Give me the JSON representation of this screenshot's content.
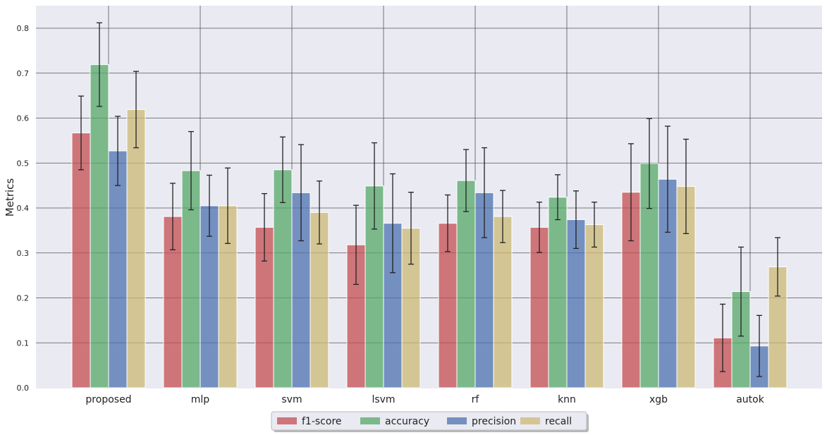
{
  "chart_data": {
    "type": "bar",
    "title": "",
    "xlabel": "",
    "ylabel": "Metrics",
    "ylim": [
      0,
      0.85
    ],
    "yticks": [
      "0.0",
      "0.1",
      "0.2",
      "0.3",
      "0.4",
      "0.5",
      "0.6",
      "0.7",
      "0.8"
    ],
    "grid": true,
    "legend_position": "bottom-center",
    "categories": [
      "proposed",
      "mlp",
      "svm",
      "lsvm",
      "rf",
      "knn",
      "xgb",
      "autok"
    ],
    "series": [
      {
        "name": "f1-score",
        "color": "#c44e52",
        "values": [
          0.567,
          0.381,
          0.357,
          0.318,
          0.366,
          0.357,
          0.435,
          0.111
        ],
        "errors": [
          0.082,
          0.074,
          0.075,
          0.088,
          0.063,
          0.056,
          0.108,
          0.075
        ]
      },
      {
        "name": "accuracy",
        "color": "#55a868",
        "values": [
          0.719,
          0.483,
          0.485,
          0.449,
          0.461,
          0.424,
          0.499,
          0.214
        ],
        "errors": [
          0.093,
          0.087,
          0.073,
          0.096,
          0.069,
          0.05,
          0.1,
          0.099
        ]
      },
      {
        "name": "precision",
        "color": "#4c72b0",
        "values": [
          0.527,
          0.405,
          0.434,
          0.366,
          0.434,
          0.374,
          0.464,
          0.093
        ],
        "errors": [
          0.077,
          0.068,
          0.107,
          0.11,
          0.1,
          0.064,
          0.118,
          0.068
        ]
      },
      {
        "name": "recall",
        "color": "#ccb974",
        "values": [
          0.619,
          0.405,
          0.39,
          0.355,
          0.381,
          0.363,
          0.448,
          0.269
        ],
        "errors": [
          0.085,
          0.084,
          0.07,
          0.08,
          0.058,
          0.05,
          0.105,
          0.065
        ]
      }
    ]
  }
}
